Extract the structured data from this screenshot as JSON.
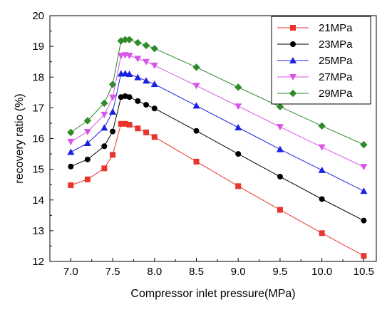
{
  "chart_data": {
    "type": "line",
    "title": "",
    "xlabel": "Compressor inlet pressure(MPa)",
    "ylabel": "recovery ratio  (%)",
    "xlim": [
      6.75,
      10.65
    ],
    "ylim": [
      12,
      20
    ],
    "xticks": [
      "7.0",
      "7.5",
      "8.0",
      "8.5",
      "9.0",
      "9.5",
      "10.0",
      "10.5"
    ],
    "yticks": [
      "12",
      "13",
      "14",
      "15",
      "16",
      "17",
      "18",
      "19",
      "20"
    ],
    "grid": false,
    "legend_position": "top-right",
    "x": [
      7.0,
      7.2,
      7.4,
      7.5,
      7.6,
      7.65,
      7.7,
      7.8,
      7.9,
      8.0,
      8.5,
      9.0,
      9.5,
      10.0,
      10.5
    ],
    "series": [
      {
        "name": "21MPa",
        "color": "#e8342c",
        "marker": "square",
        "values": [
          14.48,
          14.67,
          15.03,
          15.47,
          16.48,
          16.48,
          16.45,
          16.33,
          16.2,
          16.05,
          15.25,
          14.45,
          13.68,
          12.92,
          12.18
        ]
      },
      {
        "name": "23MPa",
        "color": "#000000",
        "marker": "circle",
        "values": [
          15.09,
          15.32,
          15.75,
          16.23,
          17.35,
          17.38,
          17.35,
          17.22,
          17.1,
          16.98,
          16.25,
          15.5,
          14.76,
          14.03,
          13.33
        ]
      },
      {
        "name": "25MPa",
        "color": "#1a22e0",
        "marker": "triangle",
        "values": [
          15.56,
          15.85,
          16.35,
          16.87,
          18.11,
          18.12,
          18.1,
          17.99,
          17.88,
          17.77,
          17.07,
          16.36,
          15.65,
          14.97,
          14.29
        ]
      },
      {
        "name": "27MPa",
        "color": "#d855e6",
        "marker": "triangle-down",
        "values": [
          15.9,
          16.22,
          16.78,
          17.34,
          18.7,
          18.72,
          18.7,
          18.6,
          18.5,
          18.38,
          17.72,
          17.05,
          16.38,
          15.72,
          15.08
        ]
      },
      {
        "name": "29MPa",
        "color": "#2f8a2a",
        "marker": "diamond",
        "values": [
          16.2,
          16.58,
          17.15,
          17.76,
          19.18,
          19.22,
          19.22,
          19.12,
          19.03,
          18.93,
          18.32,
          17.67,
          17.04,
          16.41,
          15.8
        ]
      }
    ]
  }
}
